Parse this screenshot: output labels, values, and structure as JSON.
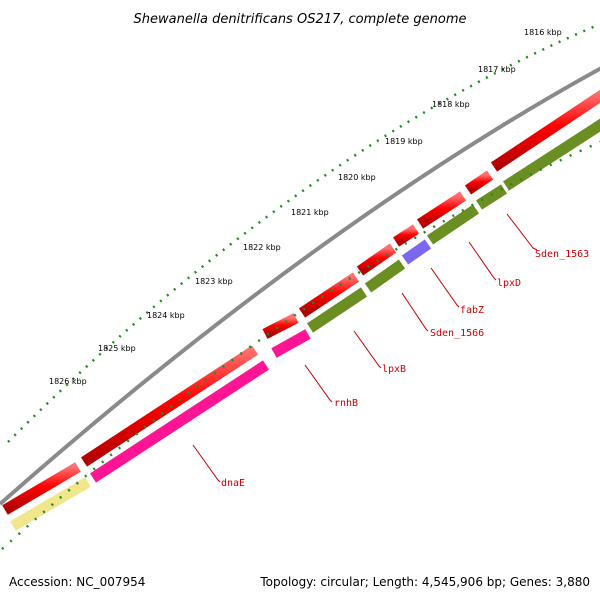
{
  "title": "Shewanella denitrificans OS217, complete genome",
  "footer": {
    "accession": "Accession: NC_007954",
    "summary": "Topology: circular; Length: 4,545,906 bp; Genes: 3,880"
  },
  "colors": {
    "backbone": "#808080",
    "tick": "#228b22",
    "cds": "#ff0000",
    "cluster_olive": "#6b8e23",
    "cluster_magenta": "#ff1493",
    "cluster_purple": "#7b68ee",
    "cluster_khaki": "#f0e68c",
    "label": "#cc0000"
  },
  "scale_labels": [
    "1816 kbp",
    "1817 kbp",
    "1818 kbp",
    "1819 kbp",
    "1820 kbp",
    "1821 kbp",
    "1822 kbp",
    "1823 kbp",
    "1824 kbp",
    "1825 kbp",
    "1826 kbp"
  ],
  "gene_labels": [
    "Sden_1563",
    "lpxD",
    "fabZ",
    "Sden_1566",
    "lpxB",
    "rnhB",
    "dnaE"
  ]
}
